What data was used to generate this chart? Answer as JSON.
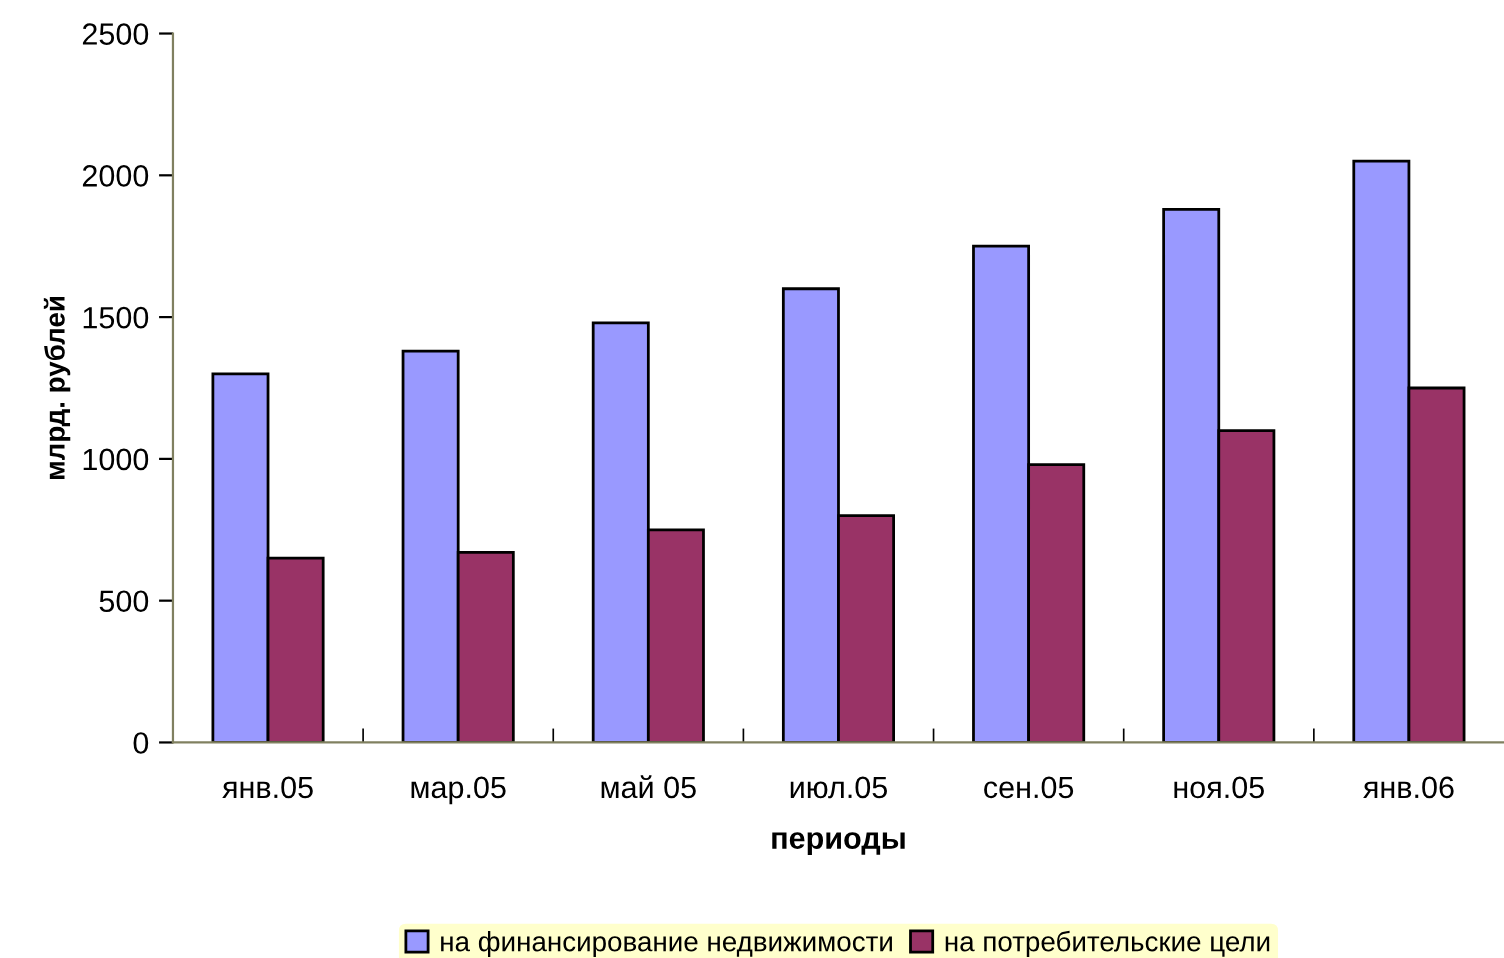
{
  "chart_data": {
    "type": "bar",
    "xlabel": "периоды",
    "ylabel": "млрд. рублей",
    "categories": [
      "янв.05",
      "мар.05",
      "май 05",
      "июл.05",
      "сен.05",
      "ноя.05",
      "янв.06"
    ],
    "series": [
      {
        "name": "на финансирование недвижимости",
        "color": "#9999ff",
        "values": [
          1300,
          1380,
          1480,
          1600,
          1750,
          1880,
          2050
        ]
      },
      {
        "name": "на потребительские цели",
        "color": "#993366",
        "values": [
          650,
          670,
          750,
          800,
          980,
          1100,
          1250
        ]
      }
    ],
    "ylim": [
      0,
      2500
    ],
    "yticks": [
      0,
      500,
      1000,
      1500,
      2000,
      2500
    ],
    "grid": false,
    "legend": "bottom"
  }
}
